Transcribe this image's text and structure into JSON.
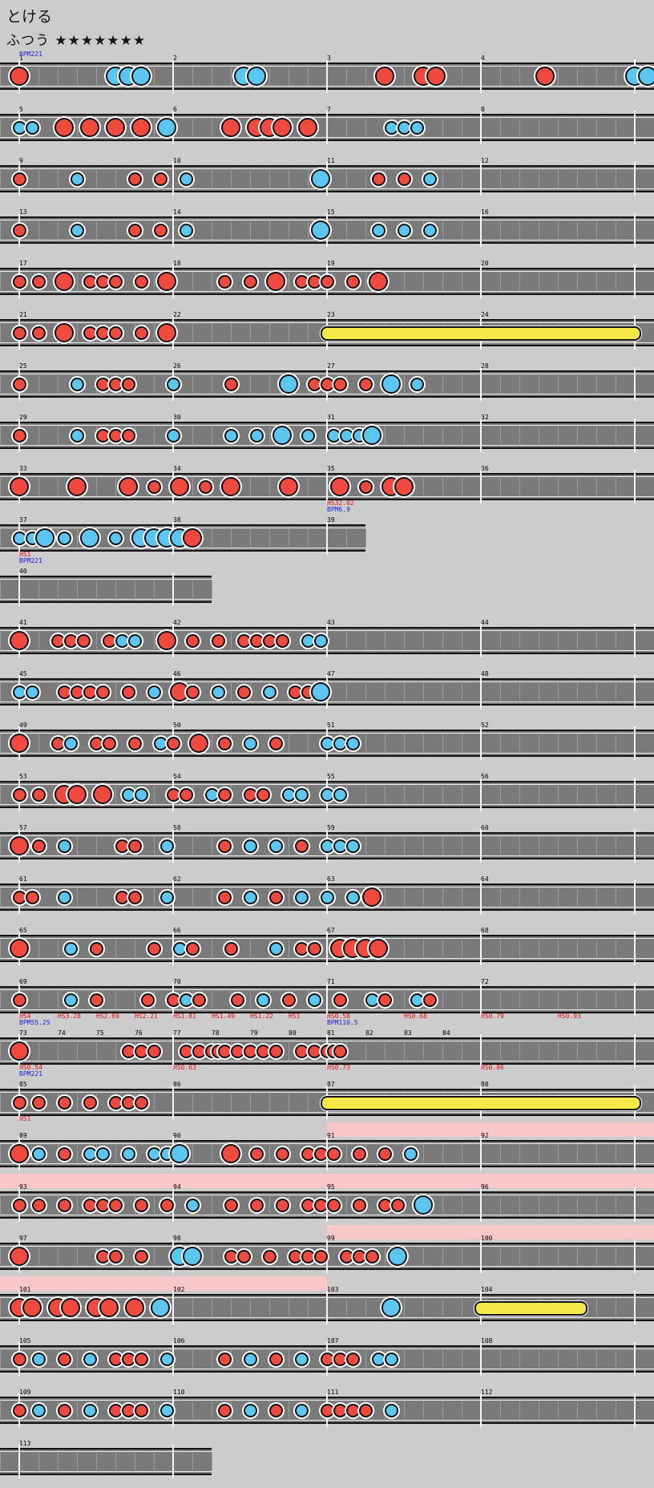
{
  "song": {
    "title": "とける",
    "difficulty": "ふつう ★★★★★★★"
  },
  "colors": {
    "don": "#f04a40",
    "ka": "#5bc7f0",
    "roll": "#f7e84a",
    "gogo": "#f8c8c8",
    "lane": "#7a7a7a",
    "background": "#cccccc"
  },
  "rows": [
    {
      "len": 4,
      "measures": [
        1,
        2,
        3,
        4
      ],
      "events": [
        {
          "t": "BPM221",
          "c": "blue",
          "line": 2
        }
      ],
      "notes": "D00000000000000K0K0K000000000000000K0K0000000000000000000D00000D0D0000000000000000D0000000000000K0K0000000000000"
    },
    {
      "len": 4,
      "measures": [
        5,
        6,
        7,
        8
      ],
      "notes": "k0k0000D000D000D000D000K000000000D000D0D0D000D000000000000k0k0k00000000000000000000000000000000000000000000000000000"
    },
    {
      "len": 4,
      "measures": [
        9,
        10,
        11,
        12
      ],
      "notes": "d00000000k00000000d000d000k00000000000000000000K00000000d000d000k0000000000000000000000000000000000000000000000000000"
    },
    {
      "len": 4,
      "measures": [
        13,
        14,
        15,
        16
      ],
      "notes": "d00000000k00000000d000d000k00000000000000000000K00000000k000k000k0000000000000000000000000000000000000000000000000000"
    },
    {
      "len": 4,
      "measures": [
        17,
        18,
        19,
        20
      ],
      "notes": "d00d000D000d0d0d000d000D00000000d000d000D000d0d0d000d000D0000000000000000000000000000000000000000000000000000000000"
    },
    {
      "len": 4,
      "measures": [
        21,
        22,
        23,
        24
      ],
      "rolls": [
        [
          2,
          4
        ]
      ],
      "notes": "d00d000D000d0d0d000d000D0000000000000000000000000000000000000000000000000000000000000000000000000000000000000000000"
    },
    {
      "len": 4,
      "measures": [
        25,
        26,
        27,
        28
      ],
      "notes": "d00000000k000d0d0d000000k00000000d00000000K000d0d0d000d000K000k00000000000000000000000000000000000000000000000000000"
    },
    {
      "len": 4,
      "measures": [
        29,
        30,
        31,
        32
      ],
      "notes": "d00000000k000d0d0d000000k00000000k000k000K000k000k0k0k0K000000000000000000000000000000000000000000000000000000000000"
    },
    {
      "len": 4,
      "measures": [
        33,
        34,
        35,
        36
      ],
      "notes": "D00000000D0000000D000d000D000d000D00000000D0000000D000d000D0D00000000000000000000000000000000000000000000000000000000"
    },
    {
      "len": 2.25,
      "measures": [
        37,
        38,
        39
      ],
      "events": [
        {
          "t": "HS32.02",
          "c": "red",
          "at": 2,
          "line": 0
        },
        {
          "t": "BPM6.9",
          "c": "blue",
          "at": 2,
          "line": 1
        }
      ],
      "notes": "k0k0K00k000K000k000K0K0K0K0D"
    },
    {
      "len": 1.25,
      "measures": [
        40
      ],
      "events": [
        {
          "t": "HS1",
          "c": "red",
          "at": 0,
          "line": 0
        },
        {
          "t": "BPM221",
          "c": "blue",
          "at": 0,
          "line": 1
        }
      ],
      "notes": ""
    },
    {
      "len": 4,
      "measures": [
        41,
        42,
        43,
        44
      ],
      "notes": "D00000d0d0d000d0k0k0000D000d000d000d0d0d0d000k0k0000000000000000000000000000000000000000000000000000000000000000"
    },
    {
      "len": 4,
      "measures": [
        45,
        46,
        47,
        48
      ],
      "notes": "k0k0000d0d0d0d000d000k000D0d000k000d000k000d0d0K00000000000000000000000000000000000000000000000000000000000000000"
    },
    {
      "len": 4,
      "measures": [
        49,
        50,
        51,
        52
      ],
      "notes": "D00000d0k000d0d000d000k0d000D000d000k000d0000000k0k0k0000000000000000000000000000000000000000000000000000000000000"
    },
    {
      "len": 4,
      "measures": [
        53,
        54,
        55,
        56
      ],
      "notes": "d00d000D0D000D000k0k0000d0d000k0d000d0d000k0k000k0k00000000000000000000000000000000000000000000000000000000000000"
    },
    {
      "len": 4,
      "measures": [
        57,
        58,
        59,
        60
      ],
      "notes": "D00d000k00000000d0d0000k00000000d000k000k000d000k0k0k00000000000000000000000000000000000000000000000000000000000000"
    },
    {
      "len": 4,
      "measures": [
        61,
        62,
        63,
        64
      ],
      "notes": "d0d0000k00000000d0d0000k00000000d000k000d000k000k000k00D000000000000000000000000000000000000000000000000000000000000"
    },
    {
      "len": 4,
      "measures": [
        65,
        66,
        67,
        68
      ],
      "notes": "D0000000k000d00000000d000k0d00000d000000k000d0d000D0D0D0D000000000000000000000000000000000000000000000000000000000"
    },
    {
      "len": 4,
      "measures": [
        69,
        70,
        71,
        72
      ],
      "notes": "d0000000k000d0000000d000d0k0d00000d000k000d000k000d0000k0d0000k0d000000000000000000000000000000000000000000000000"
    },
    {
      "len": 4,
      "measures": [
        73,
        74,
        75,
        76,
        77,
        78,
        79,
        80,
        81,
        82,
        83,
        84
      ],
      "events": [
        {
          "t": "HS4",
          "c": "red",
          "at": 0,
          "line": 0
        },
        {
          "t": "BPM55.25",
          "c": "blue",
          "at": 0,
          "line": 1
        },
        {
          "t": "HS3.28",
          "c": "red",
          "at": 0.25,
          "line": 0
        },
        {
          "t": "HS2.69",
          "c": "red",
          "at": 0.5,
          "line": 0
        },
        {
          "t": "HS2.21",
          "c": "red",
          "at": 0.75,
          "line": 0
        },
        {
          "t": "HS1.81",
          "c": "red",
          "at": 1,
          "line": 0
        },
        {
          "t": "HS1.49",
          "c": "red",
          "at": 1.25,
          "line": 0
        },
        {
          "t": "HS1.22",
          "c": "red",
          "at": 1.5,
          "line": 0
        },
        {
          "t": "HS1",
          "c": "red",
          "at": 1.75,
          "line": 0
        },
        {
          "t": "HS0.58",
          "c": "red",
          "at": 2,
          "line": 0
        },
        {
          "t": "BPM110.5",
          "c": "blue",
          "at": 2,
          "line": 1
        },
        {
          "t": "HS0.68",
          "c": "red",
          "at": 2.5,
          "line": 0
        },
        {
          "t": "HS0.79",
          "c": "red",
          "at": 3,
          "line": 0
        },
        {
          "t": "HS0.93",
          "c": "red",
          "at": 3.5,
          "line": 0
        }
      ],
      "notes": "D0000000000000000d0d0d0000d0d0ddd0d0d0d0d000d0d0ddd0000000000000000000000000000000000000000000000000000000000000000"
    },
    {
      "len": 4,
      "measures": [
        85,
        86,
        87,
        88
      ],
      "rolls": [
        [
          2,
          4
        ]
      ],
      "events": [
        {
          "t": "HS0.54",
          "c": "red",
          "at": 0,
          "line": 0
        },
        {
          "t": "BPM221",
          "c": "blue",
          "at": 0,
          "line": 1
        },
        {
          "t": "HS0.63",
          "c": "red",
          "at": 1,
          "line": 0
        },
        {
          "t": "HS0.73",
          "c": "red",
          "at": 2,
          "line": 0
        },
        {
          "t": "HS0.86",
          "c": "red",
          "at": 3,
          "line": 0
        }
      ],
      "notes": "d00d000d000d000d0d0d00000000000000000000000000000000000000000000000000000000000000000000000000000000000000000000000"
    },
    {
      "len": 4,
      "measures": [
        89,
        90,
        91,
        92
      ],
      "gogo": [
        [
          2,
          4.3
        ]
      ],
      "events": [
        {
          "t": "HS1",
          "c": "red",
          "at": 0,
          "line": 0
        }
      ],
      "notes": "D00k000d000k0k000k000k0k0K0000000D000d000d000d0d0d000d000d000k0000000000000000000000000000000000000000000000000000"
    },
    {
      "len": 4,
      "measures": [
        93,
        94,
        95,
        96
      ],
      "gogo": [
        [
          -0.15,
          4.3
        ]
      ],
      "notes": "d00d000d000d0d0d000d000d000k00000d000d000d000d0d0d000d000d0d000K000000000000000000000000000000000000000000000000000"
    },
    {
      "len": 4,
      "measures": [
        97,
        98,
        99,
        100
      ],
      "gogo": [
        [
          2,
          4.3
        ]
      ],
      "notes": "D000000000000d0d000d00000K0K00000d0d000d000d0d0d000d0d0d000K0000000000000000000000000000000000000000000000000000000"
    },
    {
      "len": 4,
      "measures": [
        101,
        102,
        103,
        104
      ],
      "rolls": [
        [
          3,
          3.65
        ]
      ],
      "gogo": [
        [
          -0.15,
          2
        ]
      ],
      "notes": "D0D000D0D000D0D000D000K00000000000000000000000000000000000K0000000000000000000000000000000000000000000000000000000"
    },
    {
      "len": 4,
      "measures": [
        105,
        106,
        107,
        108
      ],
      "notes": "d00k000d000k000d0d0d000k00000000d000k000d000k000d0d0d000k0k000000000000000000000000000000000000000000000000000000"
    },
    {
      "len": 4,
      "measures": [
        109,
        110,
        111,
        112
      ],
      "notes": "d00k000d000k000d0d0d000k00000000d000k000d000k000d0d0d0d000k000000000000000000000000000000000000000000000000000000"
    },
    {
      "len": 1.25,
      "measures": [
        113
      ],
      "notes": ""
    }
  ]
}
